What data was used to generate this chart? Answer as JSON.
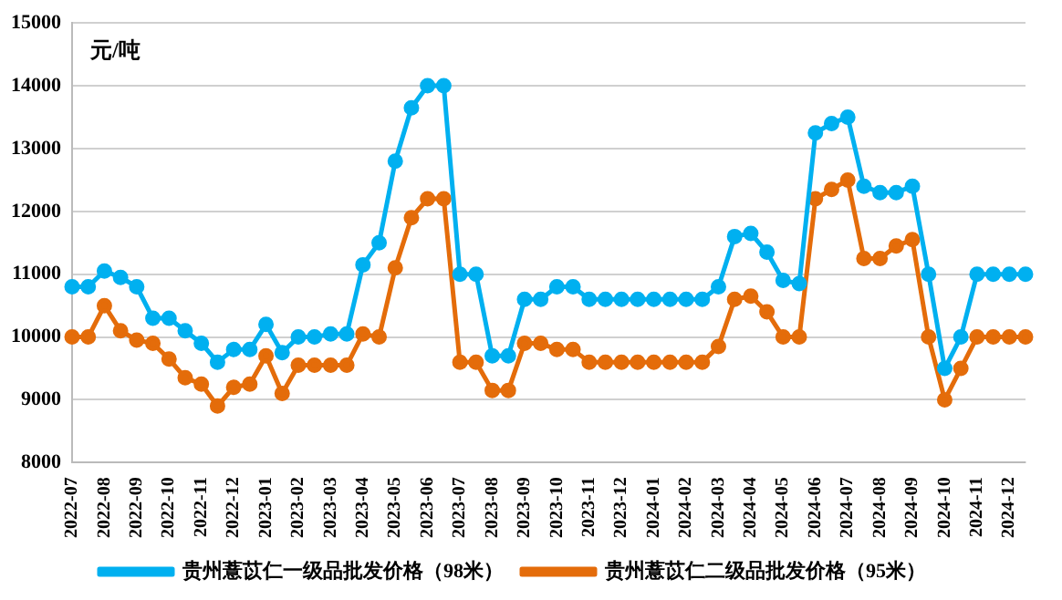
{
  "chart_data": {
    "type": "line",
    "ylabel": "元/吨",
    "categories": [
      "2022-07",
      null,
      "2022-08",
      null,
      "2022-09",
      null,
      "2022-10",
      null,
      "2022-11",
      null,
      "2022-12",
      null,
      "2023-01",
      null,
      "2023-02",
      null,
      "2023-03",
      null,
      "2023-04",
      null,
      "2023-05",
      null,
      "2023-06",
      null,
      "2023-07",
      null,
      "2023-08",
      null,
      "2023-09",
      null,
      "2023-10",
      null,
      "2023-11",
      null,
      "2023-12",
      null,
      "2024-01",
      null,
      "2024-02",
      null,
      "2024-03",
      null,
      "2024-04",
      null,
      "2024-05",
      null,
      "2024-06",
      null,
      "2024-07",
      null,
      "2024-08",
      null,
      "2024-09",
      null,
      "2024-10",
      null,
      "2024-11",
      null,
      "2024-12",
      null
    ],
    "series": [
      {
        "name": "贵州薏苡仁一级品批发价格（98米）",
        "color": "#00b0f0",
        "values": [
          10800,
          10800,
          11050,
          10950,
          10800,
          10300,
          10300,
          10100,
          9900,
          9600,
          9800,
          9800,
          10200,
          9750,
          10000,
          10000,
          10050,
          10050,
          11150,
          11500,
          12800,
          13650,
          14000,
          14000,
          11000,
          11000,
          9700,
          9700,
          10600,
          10600,
          10800,
          10800,
          10600,
          10600,
          10600,
          10600,
          10600,
          10600,
          10600,
          10600,
          10800,
          11600,
          11650,
          11350,
          10900,
          10850,
          13250,
          13400,
          13500,
          12400,
          12300,
          12300,
          12400,
          11000,
          9500,
          10000,
          11000,
          11000,
          11000,
          11000
        ]
      },
      {
        "name": "贵州薏苡仁二级品批发价格（95米）",
        "color": "#e46c0a",
        "values": [
          10000,
          10000,
          10500,
          10100,
          9950,
          9900,
          9650,
          9350,
          9250,
          8900,
          9200,
          9250,
          9700,
          9100,
          9550,
          9550,
          9550,
          9550,
          10050,
          10000,
          11100,
          11900,
          12200,
          12200,
          9600,
          9600,
          9150,
          9150,
          9900,
          9900,
          9800,
          9800,
          9600,
          9600,
          9600,
          9600,
          9600,
          9600,
          9600,
          9600,
          9850,
          10600,
          10650,
          10400,
          10000,
          10000,
          12200,
          12350,
          12500,
          11250,
          11250,
          11450,
          11550,
          10000,
          9000,
          9500,
          10000,
          10000,
          10000,
          10000
        ]
      }
    ],
    "ylim": [
      8000,
      15000
    ],
    "yticks": [
      8000,
      9000,
      10000,
      11000,
      12000,
      13000,
      14000,
      15000
    ],
    "grid": "y",
    "legend": "bottom",
    "marker": "circle",
    "line_style": "solid"
  }
}
